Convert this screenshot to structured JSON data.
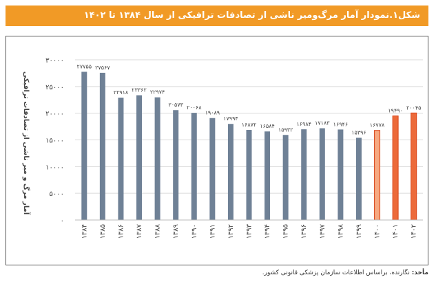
{
  "figure": {
    "title": "شکل۱.نمودار آمار مرگ‌ومیر ناشی از تصادفات ترافیکی از سال ۱۳۸۴ تا ۱۴۰۲",
    "source_label": "مأخذ:",
    "source_text": " نگارنده، براساس اطلاعات سازمان پزشکی قانونی کشور."
  },
  "colors": {
    "header": "#f19a26",
    "bar_default": "#6f8196",
    "bar_1400": "#f6a982",
    "bar_1401": "#ec6a3a",
    "bar_1402": "#ec6a3a",
    "bar_outline_orange": "#d9451a",
    "grid": "#d9d9d9"
  },
  "chart_data": {
    "type": "bar",
    "title": "شکل۱.نمودار آمار مرگ‌ومیر ناشی از تصادفات ترافیکی از سال ۱۳۸۴ تا ۱۴۰۲",
    "xlabel": "",
    "ylabel": "آمار مرگ و میر ناشی از تصادفات ترافیکی",
    "ylim": [
      0,
      30000
    ],
    "yticks": [
      0,
      5000,
      10000,
      15000,
      20000,
      25000,
      30000
    ],
    "ytick_labels": [
      "۰",
      "۵۰۰۰",
      "۱۰۰۰۰",
      "۱۵۰۰۰",
      "۲۰۰۰۰",
      "۲۵۰۰۰",
      "۳۰۰۰۰"
    ],
    "categories": [
      "۱۳۸۴",
      "۱۳۸۵",
      "۱۳۸۶",
      "۱۳۸۷",
      "۱۳۸۸",
      "۱۳۸۹",
      "۱۳۹۰",
      "۱۳۹۱",
      "۱۳۹۲",
      "۱۳۹۳",
      "۱۳۹۴",
      "۱۳۹۵",
      "۱۳۹۶",
      "۱۳۹۷",
      "۱۳۹۸",
      "۱۳۹۹",
      "۱۴۰۰",
      "۱۴۰۱",
      "۱۴۰۲"
    ],
    "values": [
      27755,
      27567,
      22918,
      23362,
      22974,
      20573,
      20068,
      19089,
      17994,
      16872,
      16584,
      15932,
      16984,
      17183,
      16946,
      15396,
      16778,
      19490,
      20045
    ],
    "value_labels": [
      "۲۷۷۵۵",
      "۲۷۵۶۷",
      "۲۲۹۱۸",
      "۲۳۳۶۲",
      "۲۲۹۷۴",
      "۲۰۵۷۳",
      "۲۰۰۶۸",
      "۱۹۰۸۹",
      "۱۷۹۹۴",
      "۱۶۸۷۲",
      "۱۶۵۸۴",
      "۱۵۹۳۲",
      "۱۶۹۸۴",
      "۱۷۱۸۳",
      "۱۶۹۴۶",
      "۱۵۳۹۶",
      "۱۶۷۷۸",
      "۱۹۴۹۰",
      "۲۰۰۴۵"
    ],
    "grid": true,
    "legend": "none"
  }
}
